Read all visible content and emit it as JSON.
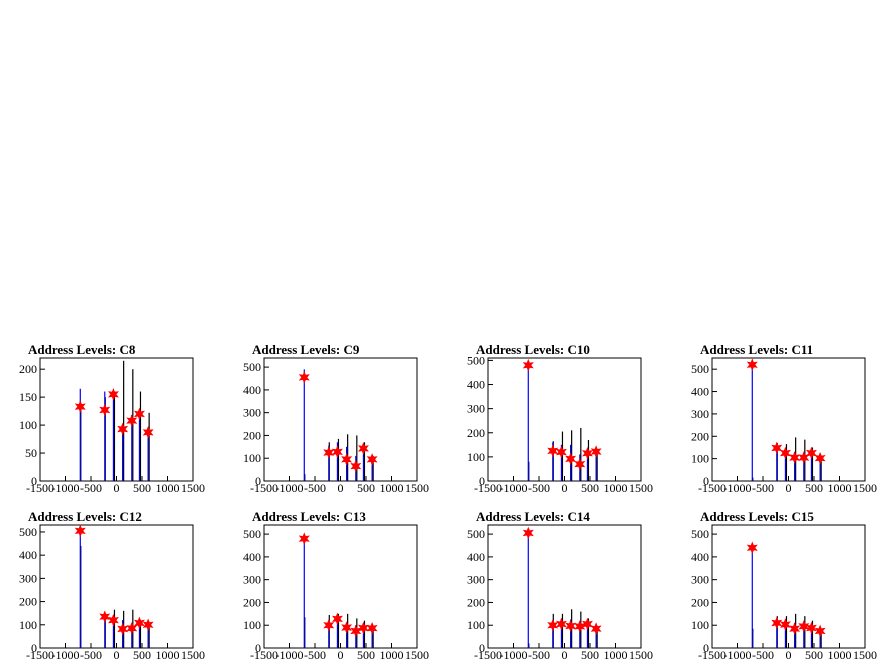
{
  "chart_data": [
    {
      "type": "bar",
      "title": "Address Levels: C8",
      "xlim": [
        -1500,
        1500
      ],
      "ylim": [
        0,
        220
      ],
      "xticks": [
        -1500,
        -1000,
        -500,
        0,
        500,
        1000,
        1500
      ],
      "yticks": [
        0,
        50,
        100,
        150,
        200
      ],
      "histogram": {
        "blue": [
          [
            -710,
            165
          ],
          [
            -230,
            160
          ],
          [
            -60,
            162
          ],
          [
            120,
            100
          ],
          [
            300,
            118
          ],
          [
            450,
            125
          ],
          [
            620,
            85
          ]
        ],
        "black": [
          [
            -700,
            140
          ],
          [
            -220,
            150
          ],
          [
            -40,
            160
          ],
          [
            140,
            215
          ],
          [
            320,
            200
          ],
          [
            470,
            160
          ],
          [
            640,
            122
          ]
        ]
      },
      "peaks": [
        [
          -710,
          133
        ],
        [
          -230,
          127
        ],
        [
          -60,
          155
        ],
        [
          120,
          93
        ],
        [
          300,
          108
        ],
        [
          450,
          120
        ],
        [
          620,
          87
        ]
      ]
    },
    {
      "type": "bar",
      "title": "Address Levels: C9",
      "xlim": [
        -1500,
        1500
      ],
      "ylim": [
        0,
        540
      ],
      "xticks": [
        -1500,
        -1000,
        -500,
        0,
        500,
        1000,
        1500
      ],
      "yticks": [
        0,
        100,
        200,
        300,
        400,
        500
      ],
      "histogram": {
        "blue": [
          [
            -710,
            490
          ],
          [
            -230,
            155
          ],
          [
            -60,
            170
          ],
          [
            120,
            150
          ],
          [
            300,
            110
          ],
          [
            450,
            150
          ],
          [
            620,
            105
          ]
        ],
        "black": [
          [
            -700,
            30
          ],
          [
            -220,
            170
          ],
          [
            -40,
            185
          ],
          [
            140,
            205
          ],
          [
            320,
            200
          ],
          [
            470,
            170
          ],
          [
            640,
            110
          ]
        ]
      },
      "peaks": [
        [
          -710,
          455
        ],
        [
          -230,
          125
        ],
        [
          -60,
          128
        ],
        [
          120,
          95
        ],
        [
          300,
          65
        ],
        [
          450,
          143
        ],
        [
          620,
          95
        ]
      ]
    },
    {
      "type": "bar",
      "title": "Address Levels: C10",
      "xlim": [
        -1500,
        1500
      ],
      "ylim": [
        0,
        510
      ],
      "xticks": [
        -1500,
        -1000,
        -500,
        0,
        500,
        1000,
        1500
      ],
      "yticks": [
        0,
        100,
        200,
        300,
        400,
        500
      ],
      "histogram": {
        "blue": [
          [
            -710,
            495
          ],
          [
            -230,
            160
          ],
          [
            -60,
            150
          ],
          [
            120,
            150
          ],
          [
            300,
            110
          ],
          [
            450,
            130
          ],
          [
            620,
            130
          ]
        ],
        "black": [
          [
            -700,
            80
          ],
          [
            -220,
            165
          ],
          [
            -40,
            205
          ],
          [
            140,
            210
          ],
          [
            320,
            220
          ],
          [
            470,
            170
          ],
          [
            640,
            120
          ]
        ]
      },
      "peaks": [
        [
          -710,
          480
        ],
        [
          -230,
          125
        ],
        [
          -60,
          120
        ],
        [
          120,
          92
        ],
        [
          300,
          70
        ],
        [
          450,
          115
        ],
        [
          620,
          122
        ]
      ]
    },
    {
      "type": "bar",
      "title": "Address Levels: C11",
      "xlim": [
        -1500,
        1500
      ],
      "ylim": [
        0,
        550
      ],
      "xticks": [
        -1500,
        -1000,
        -500,
        0,
        500,
        1000,
        1500
      ],
      "yticks": [
        0,
        100,
        200,
        300,
        400,
        500
      ],
      "histogram": {
        "blue": [
          [
            -710,
            535
          ],
          [
            -230,
            160
          ],
          [
            -60,
            140
          ],
          [
            120,
            130
          ],
          [
            300,
            110
          ],
          [
            450,
            130
          ],
          [
            620,
            110
          ]
        ],
        "black": [
          [
            -700,
            15
          ],
          [
            -220,
            170
          ],
          [
            -40,
            165
          ],
          [
            140,
            195
          ],
          [
            320,
            185
          ],
          [
            470,
            150
          ],
          [
            640,
            110
          ]
        ]
      },
      "peaks": [
        [
          -710,
          520
        ],
        [
          -230,
          148
        ],
        [
          -60,
          125
        ],
        [
          120,
          105
        ],
        [
          300,
          105
        ],
        [
          450,
          125
        ],
        [
          620,
          102
        ]
      ]
    },
    {
      "type": "bar",
      "title": "Address Levels: C12",
      "xlim": [
        -1500,
        1500
      ],
      "ylim": [
        0,
        530
      ],
      "xticks": [
        -1500,
        -1000,
        -500,
        0,
        500,
        1000,
        1500
      ],
      "yticks": [
        0,
        100,
        200,
        300,
        400,
        500
      ],
      "histogram": {
        "blue": [
          [
            -710,
            520
          ],
          [
            -230,
            140
          ],
          [
            -60,
            130
          ],
          [
            120,
            120
          ],
          [
            300,
            100
          ],
          [
            450,
            115
          ],
          [
            620,
            105
          ]
        ],
        "black": [
          [
            -700,
            440
          ],
          [
            -220,
            150
          ],
          [
            -40,
            165
          ],
          [
            140,
            160
          ],
          [
            320,
            165
          ],
          [
            470,
            120
          ],
          [
            640,
            100
          ]
        ]
      },
      "peaks": [
        [
          -710,
          505
        ],
        [
          -230,
          135
        ],
        [
          -60,
          120
        ],
        [
          120,
          82
        ],
        [
          300,
          85
        ],
        [
          450,
          108
        ],
        [
          620,
          100
        ]
      ]
    },
    {
      "type": "bar",
      "title": "Address Levels: C13",
      "xlim": [
        -1500,
        1500
      ],
      "ylim": [
        0,
        540
      ],
      "xticks": [
        -1500,
        -1000,
        -500,
        0,
        500,
        1000,
        1500
      ],
      "yticks": [
        0,
        100,
        200,
        300,
        400,
        500
      ],
      "histogram": {
        "blue": [
          [
            -710,
            495
          ],
          [
            -230,
            120
          ],
          [
            -60,
            130
          ],
          [
            120,
            110
          ],
          [
            300,
            100
          ],
          [
            450,
            100
          ],
          [
            620,
            95
          ]
        ],
        "black": [
          [
            -700,
            135
          ],
          [
            -220,
            145
          ],
          [
            -40,
            150
          ],
          [
            140,
            150
          ],
          [
            320,
            130
          ],
          [
            470,
            120
          ],
          [
            640,
            90
          ]
        ]
      },
      "peaks": [
        [
          -710,
          480
        ],
        [
          -230,
          100
        ],
        [
          -60,
          128
        ],
        [
          120,
          90
        ],
        [
          300,
          75
        ],
        [
          450,
          88
        ],
        [
          620,
          87
        ]
      ]
    },
    {
      "type": "bar",
      "title": "Address Levels: C14",
      "xlim": [
        -1500,
        1500
      ],
      "ylim": [
        0,
        540
      ],
      "xticks": [
        -1500,
        -1000,
        -500,
        0,
        500,
        1000,
        1500
      ],
      "yticks": [
        0,
        100,
        200,
        300,
        400,
        500
      ],
      "histogram": {
        "blue": [
          [
            -710,
            515
          ],
          [
            -230,
            120
          ],
          [
            -60,
            130
          ],
          [
            120,
            125
          ],
          [
            300,
            115
          ],
          [
            450,
            110
          ],
          [
            620,
            90
          ]
        ],
        "black": [
          [
            -700,
            20
          ],
          [
            -220,
            150
          ],
          [
            -40,
            150
          ],
          [
            140,
            170
          ],
          [
            320,
            160
          ],
          [
            470,
            130
          ],
          [
            640,
            90
          ]
        ]
      },
      "peaks": [
        [
          -710,
          505
        ],
        [
          -230,
          100
        ],
        [
          -60,
          105
        ],
        [
          120,
          97
        ],
        [
          300,
          95
        ],
        [
          450,
          105
        ],
        [
          620,
          85
        ]
      ]
    },
    {
      "type": "bar",
      "title": "Address Levels: C15",
      "xlim": [
        -1500,
        1500
      ],
      "ylim": [
        0,
        540
      ],
      "xticks": [
        -1500,
        -1000,
        -500,
        0,
        500,
        1000,
        1500
      ],
      "yticks": [
        0,
        100,
        200,
        300,
        400,
        500
      ],
      "histogram": {
        "blue": [
          [
            -710,
            455
          ],
          [
            -230,
            125
          ],
          [
            -60,
            120
          ],
          [
            120,
            110
          ],
          [
            300,
            110
          ],
          [
            450,
            100
          ],
          [
            620,
            90
          ]
        ],
        "black": [
          [
            -700,
            85
          ],
          [
            -220,
            140
          ],
          [
            -40,
            140
          ],
          [
            140,
            150
          ],
          [
            320,
            140
          ],
          [
            470,
            120
          ],
          [
            640,
            80
          ]
        ]
      },
      "peaks": [
        [
          -710,
          440
        ],
        [
          -230,
          110
        ],
        [
          -60,
          103
        ],
        [
          120,
          85
        ],
        [
          300,
          95
        ],
        [
          450,
          88
        ],
        [
          620,
          75
        ]
      ]
    }
  ],
  "colors": {
    "hist_blue": "#0000ff",
    "hist_black": "#000000",
    "marker": "#ff0000",
    "axis": "#000000"
  },
  "marker_shape": "star"
}
